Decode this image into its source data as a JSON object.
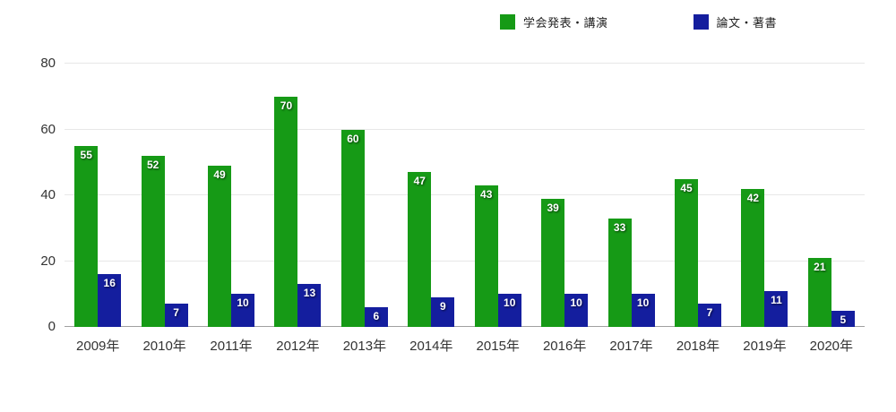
{
  "chart_data": {
    "type": "bar",
    "title": "",
    "categories": [
      "2009年",
      "2010年",
      "2011年",
      "2012年",
      "2013年",
      "2014年",
      "2015年",
      "2016年",
      "2017年",
      "2018年",
      "2019年",
      "2020年"
    ],
    "series": [
      {
        "name": "学会発表・講演",
        "color": "#169a16",
        "values": [
          55,
          52,
          49,
          70,
          60,
          47,
          43,
          39,
          33,
          45,
          42,
          21
        ]
      },
      {
        "name": "論文・著書",
        "color": "#141e9e",
        "values": [
          16,
          7,
          10,
          13,
          6,
          9,
          10,
          10,
          10,
          7,
          11,
          5
        ]
      }
    ],
    "xlabel": "",
    "ylabel": "",
    "ylim": [
      0,
      80
    ],
    "yticks": [
      0,
      20,
      40,
      60,
      80
    ],
    "grid": true,
    "legend_position": "top",
    "data_labels": true,
    "data_label_color": "#ffffff",
    "gridline_color": "#e7e7e7",
    "baseline_color": "#a0a0a0",
    "tick_label_color": "#333333"
  }
}
